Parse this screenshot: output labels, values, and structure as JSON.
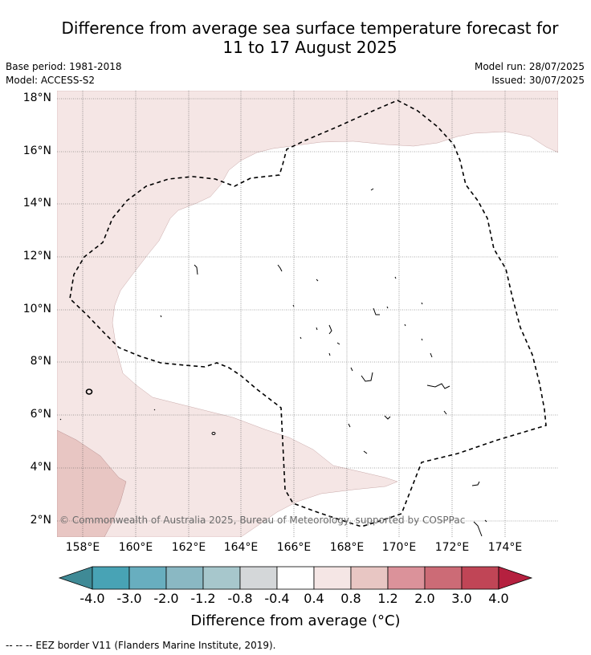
{
  "title_line1": "Difference from average sea surface temperature forecast for",
  "title_line2": "11 to 17 August 2025",
  "base_period": "Base period: 1981-2018",
  "model": "Model: ACCESS-S2",
  "model_run": "Model run: 28/07/2025",
  "issued": "Issued: 30/07/2025",
  "credit": "© Commonwealth of Australia 2025, Bureau of Meteorology, supported by COSPPac",
  "lat_labels": [
    "18°N",
    "16°N",
    "14°N",
    "12°N",
    "10°N",
    "8°N",
    "6°N",
    "4°N",
    "2°N"
  ],
  "lon_labels": [
    "158°E",
    "160°E",
    "162°E",
    "164°E",
    "166°E",
    "168°E",
    "170°E",
    "172°E",
    "174°E"
  ],
  "colorbar": {
    "title": "Difference from average (°C)",
    "ticks": [
      "-4.0",
      "-3.0",
      "-2.0",
      "-1.2",
      "-0.8",
      "-0.4",
      "0.4",
      "0.8",
      "1.2",
      "2.0",
      "3.0",
      "4.0"
    ],
    "colors": [
      "#3f8a96",
      "#48a3b5",
      "#68aebf",
      "#8ab8c3",
      "#a7c7cc",
      "#d4d7d9",
      "#ffffff",
      "#f5e6e5",
      "#e8c6c3",
      "#db929a",
      "#cc6b76",
      "#c04556",
      "#b5203f"
    ]
  },
  "legend_note": "-- -- -- EEZ border V11 (Flanders Marine Institute, 2019).",
  "map_colors": {
    "band_0_4_0_8": "#f5e6e5",
    "band_0_8_1_2": "#e8c6c3"
  }
}
